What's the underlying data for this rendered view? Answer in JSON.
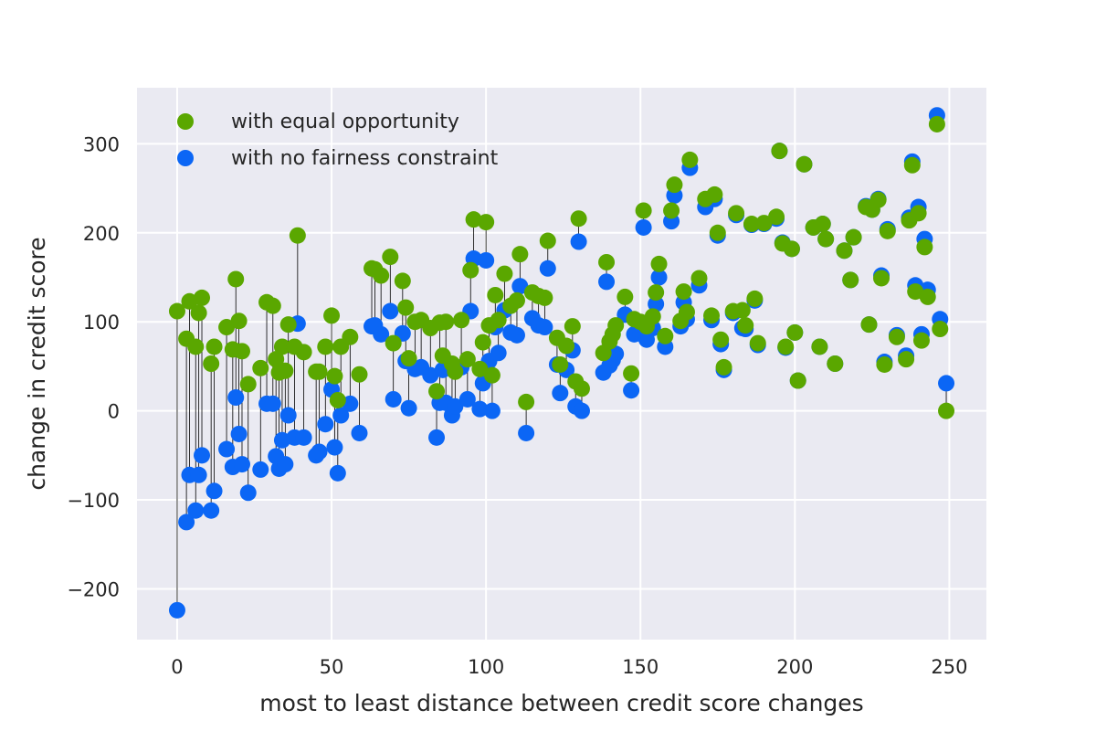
{
  "chart_data": {
    "type": "scatter",
    "xlabel": "most to least distance between credit score changes",
    "ylabel": "change in credit score",
    "xlim": [
      -13,
      262
    ],
    "ylim": [
      -257,
      363
    ],
    "xticks": [
      0,
      50,
      100,
      150,
      200,
      250
    ],
    "yticks": [
      -200,
      -100,
      0,
      100,
      200,
      300
    ],
    "xtick_labels": [
      "0",
      "50",
      "100",
      "150",
      "200",
      "250"
    ],
    "ytick_labels": [
      "−200",
      "−100",
      "0",
      "100",
      "200",
      "300"
    ],
    "grid": true,
    "legend_position": "top-left",
    "connector_lines": true,
    "series": [
      {
        "name": "with equal opportunity",
        "color": "#5aa700",
        "points": [
          [
            0,
            112
          ],
          [
            3,
            81
          ],
          [
            4,
            123
          ],
          [
            6,
            72
          ],
          [
            7,
            110
          ],
          [
            8,
            127
          ],
          [
            11,
            53
          ],
          [
            12,
            72
          ],
          [
            16,
            94
          ],
          [
            18,
            69
          ],
          [
            19,
            148
          ],
          [
            20,
            101
          ],
          [
            21,
            67
          ],
          [
            23,
            30
          ],
          [
            27,
            48
          ],
          [
            29,
            122
          ],
          [
            31,
            118
          ],
          [
            32,
            58
          ],
          [
            33,
            43
          ],
          [
            34,
            72
          ],
          [
            35,
            45
          ],
          [
            36,
            97
          ],
          [
            38,
            72
          ],
          [
            39,
            197
          ],
          [
            41,
            66
          ],
          [
            45,
            44
          ],
          [
            46,
            44
          ],
          [
            48,
            72
          ],
          [
            50,
            107
          ],
          [
            51,
            39
          ],
          [
            52,
            12
          ],
          [
            53,
            72
          ],
          [
            56,
            83
          ],
          [
            59,
            41
          ],
          [
            63,
            160
          ],
          [
            64,
            159
          ],
          [
            66,
            152
          ],
          [
            69,
            173
          ],
          [
            70,
            76
          ],
          [
            73,
            146
          ],
          [
            74,
            116
          ],
          [
            75,
            59
          ],
          [
            77,
            100
          ],
          [
            79,
            102
          ],
          [
            82,
            93
          ],
          [
            84,
            22
          ],
          [
            85,
            99
          ],
          [
            86,
            62
          ],
          [
            87,
            100
          ],
          [
            89,
            53
          ],
          [
            90,
            44
          ],
          [
            92,
            102
          ],
          [
            94,
            58
          ],
          [
            95,
            158
          ],
          [
            96,
            215
          ],
          [
            98,
            47
          ],
          [
            99,
            77
          ],
          [
            100,
            212
          ],
          [
            101,
            96
          ],
          [
            102,
            40
          ],
          [
            103,
            130
          ],
          [
            104,
            102
          ],
          [
            106,
            154
          ],
          [
            108,
            118
          ],
          [
            110,
            124
          ],
          [
            111,
            176
          ],
          [
            113,
            10
          ],
          [
            115,
            133
          ],
          [
            117,
            129
          ],
          [
            119,
            127
          ],
          [
            120,
            191
          ],
          [
            123,
            82
          ],
          [
            124,
            52
          ],
          [
            126,
            73
          ],
          [
            128,
            95
          ],
          [
            129,
            33
          ],
          [
            130,
            216
          ],
          [
            131,
            25
          ],
          [
            138,
            65
          ],
          [
            139,
            167
          ],
          [
            140,
            78
          ],
          [
            141,
            86
          ],
          [
            142,
            96
          ],
          [
            145,
            128
          ],
          [
            147,
            42
          ],
          [
            148,
            103
          ],
          [
            150,
            100
          ],
          [
            151,
            225
          ],
          [
            152,
            95
          ],
          [
            154,
            106
          ],
          [
            155,
            133
          ],
          [
            156,
            165
          ],
          [
            158,
            84
          ],
          [
            160,
            225
          ],
          [
            161,
            254
          ],
          [
            163,
            101
          ],
          [
            164,
            134
          ],
          [
            165,
            111
          ],
          [
            166,
            282
          ],
          [
            169,
            149
          ],
          [
            171,
            238
          ],
          [
            173,
            107
          ],
          [
            174,
            243
          ],
          [
            175,
            200
          ],
          [
            176,
            80
          ],
          [
            177,
            49
          ],
          [
            180,
            112
          ],
          [
            181,
            222
          ],
          [
            183,
            113
          ],
          [
            184,
            96
          ],
          [
            186,
            210
          ],
          [
            187,
            126
          ],
          [
            188,
            76
          ],
          [
            190,
            211
          ],
          [
            194,
            218
          ],
          [
            195,
            292
          ],
          [
            196,
            188
          ],
          [
            197,
            72
          ],
          [
            199,
            182
          ],
          [
            200,
            88
          ],
          [
            201,
            34
          ],
          [
            203,
            277
          ],
          [
            206,
            206
          ],
          [
            208,
            72
          ],
          [
            209,
            210
          ],
          [
            210,
            193
          ],
          [
            213,
            53
          ],
          [
            216,
            180
          ],
          [
            218,
            147
          ],
          [
            219,
            195
          ],
          [
            223,
            229
          ],
          [
            224,
            97
          ],
          [
            225,
            226
          ],
          [
            227,
            237
          ],
          [
            228,
            149
          ],
          [
            229,
            52
          ],
          [
            230,
            202
          ],
          [
            233,
            83
          ],
          [
            236,
            58
          ],
          [
            237,
            214
          ],
          [
            238,
            276
          ],
          [
            239,
            134
          ],
          [
            240,
            222
          ],
          [
            241,
            79
          ],
          [
            242,
            184
          ],
          [
            243,
            128
          ],
          [
            246,
            322
          ],
          [
            247,
            92
          ],
          [
            249,
            0
          ]
        ]
      },
      {
        "name": "with no fairness constraint",
        "color": "#0b66f5",
        "points": [
          [
            0,
            -224
          ],
          [
            3,
            -125
          ],
          [
            4,
            -72
          ],
          [
            6,
            -112
          ],
          [
            7,
            -72
          ],
          [
            8,
            -50
          ],
          [
            11,
            -112
          ],
          [
            12,
            -90
          ],
          [
            16,
            -43
          ],
          [
            18,
            -63
          ],
          [
            19,
            15
          ],
          [
            20,
            -26
          ],
          [
            21,
            -60
          ],
          [
            23,
            -92
          ],
          [
            27,
            -66
          ],
          [
            29,
            8
          ],
          [
            31,
            8
          ],
          [
            32,
            -51
          ],
          [
            33,
            -65
          ],
          [
            34,
            -33
          ],
          [
            35,
            -60
          ],
          [
            36,
            -5
          ],
          [
            38,
            -30
          ],
          [
            39,
            98
          ],
          [
            41,
            -30
          ],
          [
            45,
            -50
          ],
          [
            46,
            -46
          ],
          [
            48,
            -15
          ],
          [
            50,
            24
          ],
          [
            51,
            -41
          ],
          [
            52,
            -70
          ],
          [
            53,
            -5
          ],
          [
            56,
            8
          ],
          [
            59,
            -25
          ],
          [
            63,
            95
          ],
          [
            64,
            96
          ],
          [
            66,
            86
          ],
          [
            69,
            112
          ],
          [
            70,
            13
          ],
          [
            73,
            87
          ],
          [
            74,
            56
          ],
          [
            75,
            3
          ],
          [
            77,
            47
          ],
          [
            79,
            49
          ],
          [
            82,
            40
          ],
          [
            84,
            -30
          ],
          [
            85,
            9
          ],
          [
            86,
            46
          ],
          [
            87,
            9
          ],
          [
            89,
            -5
          ],
          [
            90,
            5
          ],
          [
            92,
            49
          ],
          [
            94,
            13
          ],
          [
            95,
            112
          ],
          [
            96,
            171
          ],
          [
            98,
            2
          ],
          [
            99,
            31
          ],
          [
            100,
            169
          ],
          [
            101,
            56
          ],
          [
            102,
            0
          ],
          [
            103,
            94
          ],
          [
            104,
            65
          ],
          [
            106,
            113
          ],
          [
            108,
            88
          ],
          [
            110,
            85
          ],
          [
            111,
            140
          ],
          [
            113,
            -25
          ],
          [
            115,
            104
          ],
          [
            117,
            96
          ],
          [
            119,
            94
          ],
          [
            120,
            160
          ],
          [
            123,
            52
          ],
          [
            124,
            20
          ],
          [
            126,
            46
          ],
          [
            128,
            68
          ],
          [
            129,
            5
          ],
          [
            130,
            190
          ],
          [
            131,
            0
          ],
          [
            138,
            43
          ],
          [
            139,
            145
          ],
          [
            140,
            51
          ],
          [
            141,
            57
          ],
          [
            142,
            64
          ],
          [
            145,
            108
          ],
          [
            147,
            23
          ],
          [
            148,
            86
          ],
          [
            150,
            87
          ],
          [
            151,
            206
          ],
          [
            152,
            80
          ],
          [
            154,
            93
          ],
          [
            155,
            120
          ],
          [
            156,
            150
          ],
          [
            158,
            72
          ],
          [
            160,
            213
          ],
          [
            161,
            242
          ],
          [
            163,
            95
          ],
          [
            164,
            122
          ],
          [
            165,
            103
          ],
          [
            166,
            273
          ],
          [
            169,
            141
          ],
          [
            171,
            229
          ],
          [
            173,
            102
          ],
          [
            174,
            238
          ],
          [
            175,
            197
          ],
          [
            176,
            75
          ],
          [
            177,
            46
          ],
          [
            180,
            110
          ],
          [
            181,
            220
          ],
          [
            183,
            93
          ],
          [
            184,
            92
          ],
          [
            186,
            209
          ],
          [
            187,
            124
          ],
          [
            188,
            74
          ],
          [
            190,
            210
          ],
          [
            194,
            216
          ],
          [
            195,
            292
          ],
          [
            196,
            189
          ],
          [
            197,
            71
          ],
          [
            199,
            182
          ],
          [
            200,
            88
          ],
          [
            201,
            34
          ],
          [
            203,
            277
          ],
          [
            206,
            206
          ],
          [
            208,
            72
          ],
          [
            209,
            210
          ],
          [
            210,
            193
          ],
          [
            213,
            53
          ],
          [
            216,
            180
          ],
          [
            218,
            147
          ],
          [
            219,
            195
          ],
          [
            223,
            230
          ],
          [
            224,
            97
          ],
          [
            225,
            226
          ],
          [
            227,
            238
          ],
          [
            228,
            152
          ],
          [
            229,
            55
          ],
          [
            230,
            204
          ],
          [
            233,
            85
          ],
          [
            236,
            62
          ],
          [
            237,
            217
          ],
          [
            238,
            280
          ],
          [
            239,
            141
          ],
          [
            240,
            229
          ],
          [
            241,
            86
          ],
          [
            242,
            193
          ],
          [
            243,
            136
          ],
          [
            246,
            332
          ],
          [
            247,
            103
          ],
          [
            249,
            31
          ]
        ]
      }
    ]
  }
}
